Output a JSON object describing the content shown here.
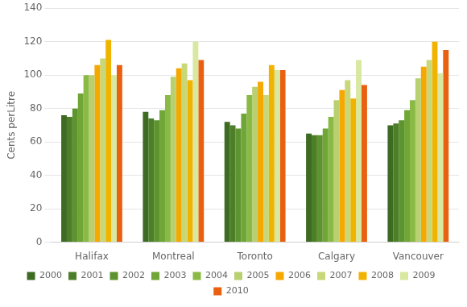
{
  "chart_data": {
    "type": "bar",
    "categories": [
      "Halifax",
      "Montreal",
      "Toronto",
      "Calgary",
      "Vancouver"
    ],
    "series": [
      {
        "name": "2000",
        "color": "#3d6b22",
        "values": [
          76,
          78,
          72,
          65,
          70
        ]
      },
      {
        "name": "2001",
        "color": "#4d7f28",
        "values": [
          75,
          74,
          70,
          64,
          71
        ]
      },
      {
        "name": "2002",
        "color": "#5e9430",
        "values": [
          80,
          73,
          68,
          64,
          73
        ]
      },
      {
        "name": "2003",
        "color": "#6fa636",
        "values": [
          89,
          79,
          77,
          68,
          79
        ]
      },
      {
        "name": "2004",
        "color": "#8aba45",
        "values": [
          100,
          88,
          88,
          75,
          85
        ]
      },
      {
        "name": "2005",
        "color": "#b8d070",
        "values": [
          100,
          99,
          93,
          85,
          98
        ]
      },
      {
        "name": "2006",
        "color": "#f5a800",
        "values": [
          106,
          104,
          96,
          91,
          105
        ]
      },
      {
        "name": "2007",
        "color": "#c8d878",
        "values": [
          110,
          107,
          88,
          97,
          109
        ]
      },
      {
        "name": "2008",
        "color": "#f0b400",
        "values": [
          121,
          97,
          106,
          86,
          120
        ]
      },
      {
        "name": "2009",
        "color": "#d8e8a0",
        "values": [
          100,
          120,
          103,
          109,
          101
        ]
      },
      {
        "name": "2010",
        "color": "#e86010",
        "values": [
          106,
          109,
          103,
          94,
          115
        ]
      }
    ],
    "ylabel": "Cents perLitre",
    "ylim": [
      0,
      140
    ],
    "yticks": [
      0,
      20,
      40,
      60,
      80,
      100,
      120,
      140
    ],
    "grid": true,
    "legend": "bottom"
  }
}
